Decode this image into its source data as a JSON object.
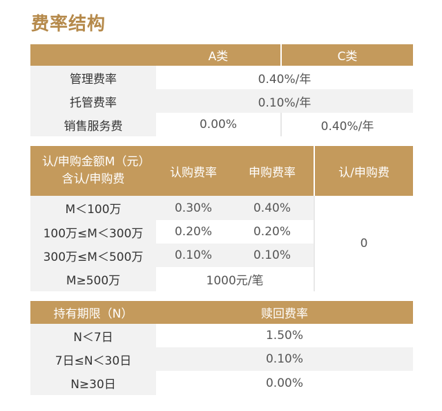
{
  "title": "费率结构",
  "fee_table": {
    "headers": [
      "A类",
      "C类"
    ],
    "rows": [
      {
        "label": "管理费率",
        "value": "0.40%/年"
      },
      {
        "label": "托管费率",
        "value": "0.10%/年"
      },
      {
        "label": "销售服务费",
        "a": "0.00%",
        "c": "0.40%/年"
      }
    ]
  },
  "subscription_table": {
    "headers": {
      "amount": "认/申购金额M（元）含认/申购费",
      "subscribe": "认购费率",
      "purchase": "申购费率",
      "fee": "认/申购费"
    },
    "rows": [
      {
        "amount": "M＜100万",
        "subscribe": "0.30%",
        "purchase": "0.40%"
      },
      {
        "amount": "100万≤M＜300万",
        "subscribe": "0.20%",
        "purchase": "0.20%"
      },
      {
        "amount": "300万≤M＜500万",
        "subscribe": "0.10%",
        "purchase": "0.10%"
      },
      {
        "amount": "M≥500万",
        "merged": "1000元/笔"
      }
    ],
    "fee_value": "0"
  },
  "redemption_table": {
    "headers": {
      "period": "持有期限（N）",
      "rate": "赎回费率"
    },
    "rows": [
      {
        "period": "N＜7日",
        "rate": "1.50%"
      },
      {
        "period": "7日≤N＜30日",
        "rate": "0.10%"
      },
      {
        "period": "N≥30日",
        "rate": "0.00%"
      }
    ]
  }
}
